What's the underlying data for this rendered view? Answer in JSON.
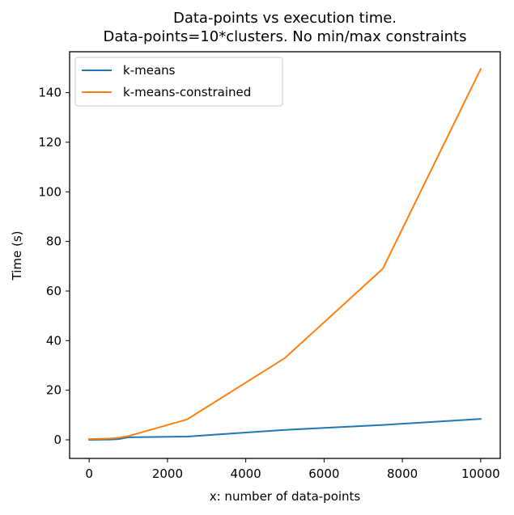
{
  "chart_data": {
    "type": "line",
    "title": "Data-points vs execution time.",
    "subtitle": "Data-points=10*clusters. No min/max constraints",
    "xlabel": "x: number of data-points",
    "ylabel": "Time (s)",
    "xlim": [
      -500,
      10500
    ],
    "ylim": [
      -7.5,
      156.5
    ],
    "xticks": [
      0,
      2000,
      4000,
      6000,
      8000,
      10000
    ],
    "xtick_labels": [
      "0",
      "2000",
      "4000",
      "6000",
      "8000",
      "10000"
    ],
    "yticks": [
      0,
      20,
      40,
      60,
      80,
      100,
      120,
      140
    ],
    "ytick_labels": [
      "0",
      "20",
      "40",
      "60",
      "80",
      "100",
      "120",
      "140"
    ],
    "grid": false,
    "legend_position": "top-left",
    "series": [
      {
        "name": "k-means",
        "color": "#1f77b4",
        "x": [
          0,
          500,
          750,
          1000,
          2500,
          5000,
          7500,
          10000
        ],
        "y": [
          0.0,
          0.1,
          0.3,
          1.0,
          1.3,
          4.0,
          6.0,
          8.4
        ]
      },
      {
        "name": "k-means-constrained",
        "color": "#ff7f0e",
        "x": [
          0,
          500,
          750,
          1000,
          2500,
          5000,
          7500,
          10000
        ],
        "y": [
          0.3,
          0.5,
          0.8,
          1.5,
          8.2,
          33.0,
          69.0,
          149.5
        ]
      }
    ]
  }
}
